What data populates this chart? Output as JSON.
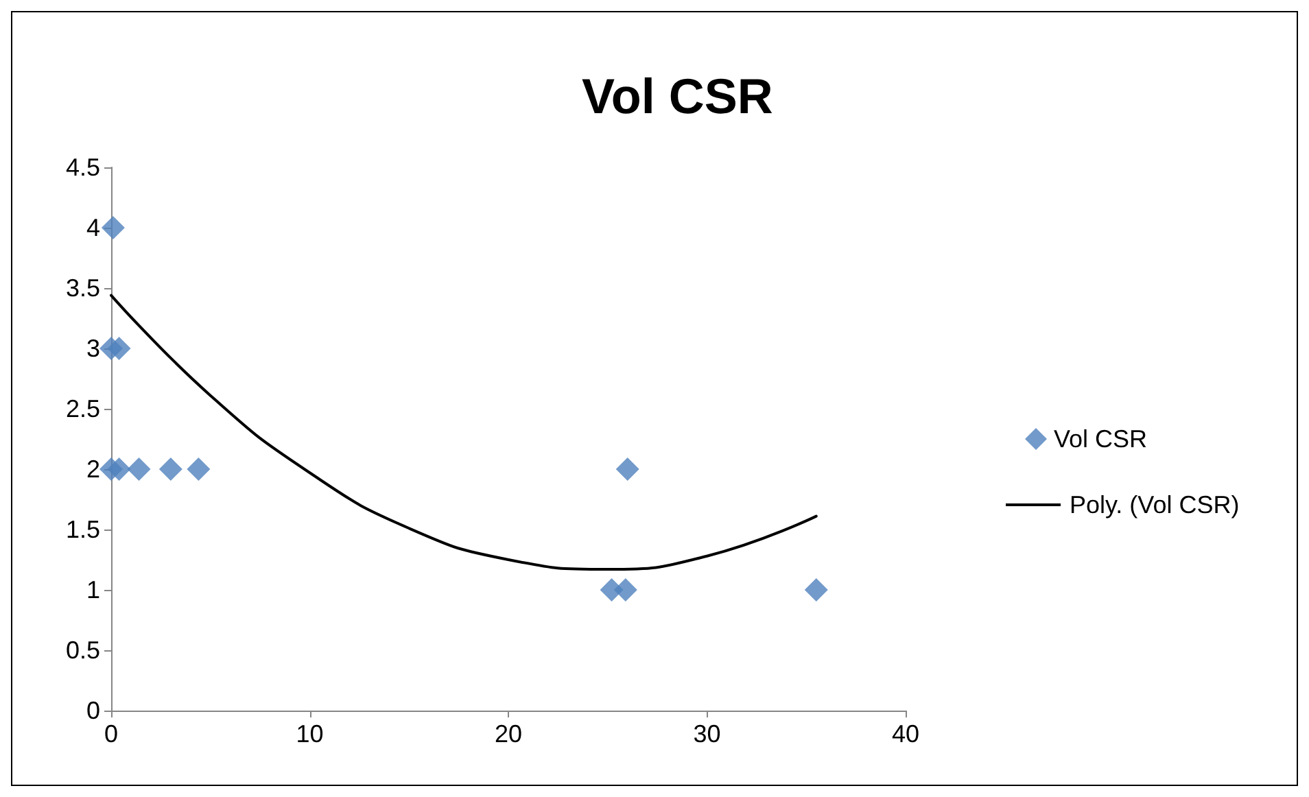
{
  "chart_data": {
    "type": "scatter",
    "title": "Vol CSR",
    "series": [
      {
        "name": "Vol CSR",
        "color": "#4f81bd",
        "marker": "diamond",
        "x": [
          0.1,
          0,
          0.4,
          0,
          0.4,
          1.4,
          3.0,
          4.4,
          26.0,
          25.2,
          25.9,
          35.5
        ],
        "values": [
          4,
          3,
          3,
          2,
          2,
          2,
          2,
          2,
          2,
          1,
          1,
          1
        ]
      },
      {
        "name": "Poly. (Vol CSR)",
        "type": "line",
        "color": "#000000",
        "marker": "none",
        "line_style": "solid",
        "x": [
          0,
          5,
          10,
          15,
          20,
          25,
          30,
          35.5
        ],
        "values": [
          3.44,
          2.61,
          1.97,
          1.51,
          1.25,
          1.17,
          1.28,
          1.61
        ]
      }
    ],
    "xlim": [
      0,
      40
    ],
    "xticks": [
      0,
      10,
      20,
      30,
      40
    ],
    "ylim": [
      0,
      4.5
    ],
    "yticks": [
      0,
      0.5,
      1,
      1.5,
      2,
      2.5,
      3,
      3.5,
      4,
      4.5
    ],
    "grid": false,
    "legend": "right"
  }
}
